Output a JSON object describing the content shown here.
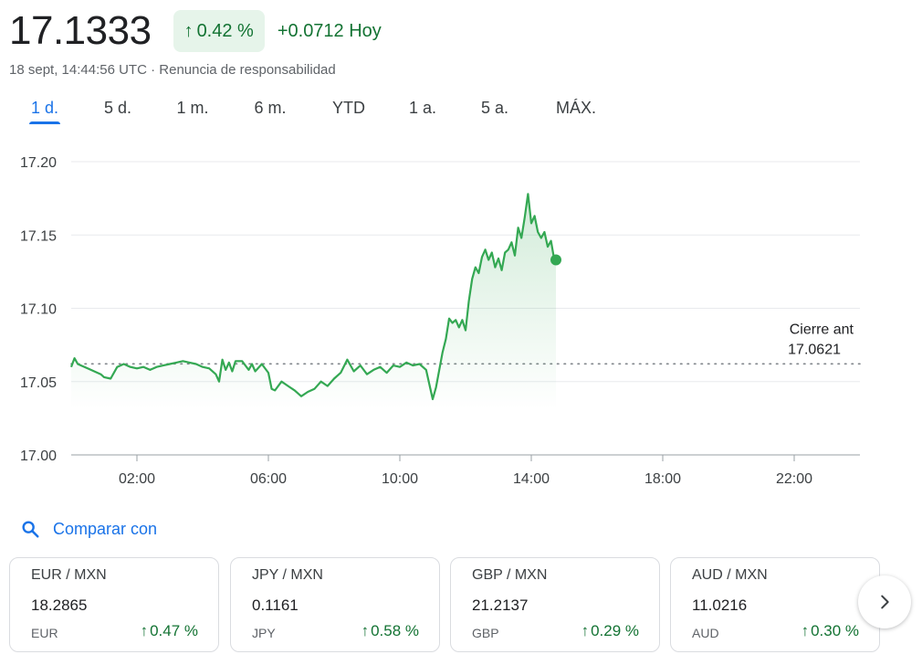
{
  "header": {
    "price": "17.1333",
    "pct_change": "0.42 %",
    "abs_change": "+0.0712 Hoy",
    "timestamp": "18 sept, 14:44:56 UTC · ",
    "disclaimer": "Renuncia de responsabilidad",
    "arrow_icon": "arrow-up-icon",
    "accent_color": "#137333",
    "accent_bg": "#e6f4ea"
  },
  "tabs": [
    {
      "label": "1 d.",
      "active": true
    },
    {
      "label": "5 d.",
      "active": false
    },
    {
      "label": "1 m.",
      "active": false
    },
    {
      "label": "6 m.",
      "active": false
    },
    {
      "label": "YTD",
      "active": false
    },
    {
      "label": "1 a.",
      "active": false
    },
    {
      "label": "5 a.",
      "active": false
    },
    {
      "label": "MÁX.",
      "active": false
    }
  ],
  "chart_data": {
    "type": "line",
    "x_unit": "hours",
    "y_ticks": [
      "17.20",
      "17.15",
      "17.10",
      "17.05",
      "17.00"
    ],
    "ylim": [
      17.0,
      17.2
    ],
    "xlim": [
      0,
      24
    ],
    "x_tick_labels": [
      "02:00",
      "06:00",
      "10:00",
      "14:00",
      "18:00",
      "22:00"
    ],
    "x_tick_values": [
      2,
      6,
      10,
      14,
      18,
      22
    ],
    "prev_close_label": "Cierre ant",
    "prev_close_value": "17.0621",
    "prev_close": 17.0621,
    "line_color": "#34a853",
    "grid": true,
    "series": [
      {
        "x": [
          0.0,
          0.1,
          0.2,
          0.3,
          0.5,
          0.7,
          0.9,
          1.0,
          1.2,
          1.4,
          1.6,
          1.8,
          2.0,
          2.2,
          2.4,
          2.6,
          2.8,
          3.0,
          3.2,
          3.4,
          3.6,
          3.8,
          4.0,
          4.2,
          4.4,
          4.5,
          4.6,
          4.7,
          4.8,
          4.9,
          5.0,
          5.2,
          5.4,
          5.5,
          5.6,
          5.8,
          6.0,
          6.1,
          6.2,
          6.4,
          6.6,
          6.8,
          7.0,
          7.2,
          7.4,
          7.6,
          7.8,
          8.0,
          8.2,
          8.4,
          8.6,
          8.8,
          9.0,
          9.2,
          9.4,
          9.6,
          9.8,
          10.0,
          10.2,
          10.4,
          10.6,
          10.8,
          10.9,
          11.0,
          11.1,
          11.2,
          11.3,
          11.4,
          11.5,
          11.6,
          11.7,
          11.8,
          11.9,
          12.0,
          12.1,
          12.2,
          12.3,
          12.4,
          12.5,
          12.6,
          12.7,
          12.8,
          12.9,
          13.0,
          13.1,
          13.2,
          13.3,
          13.4,
          13.5,
          13.6,
          13.7,
          13.8,
          13.9,
          14.0,
          14.1,
          14.2,
          14.3,
          14.4,
          14.5,
          14.6,
          14.7,
          14.75
        ],
        "y": [
          17.06,
          17.066,
          17.062,
          17.061,
          17.059,
          17.057,
          17.055,
          17.053,
          17.052,
          17.06,
          17.062,
          17.06,
          17.059,
          17.06,
          17.058,
          17.06,
          17.061,
          17.062,
          17.063,
          17.064,
          17.063,
          17.062,
          17.06,
          17.059,
          17.055,
          17.05,
          17.065,
          17.058,
          17.063,
          17.057,
          17.064,
          17.064,
          17.058,
          17.062,
          17.057,
          17.062,
          17.056,
          17.045,
          17.044,
          17.05,
          17.047,
          17.044,
          17.04,
          17.043,
          17.045,
          17.05,
          17.047,
          17.052,
          17.056,
          17.065,
          17.057,
          17.061,
          17.055,
          17.058,
          17.06,
          17.056,
          17.061,
          17.06,
          17.063,
          17.061,
          17.062,
          17.058,
          17.048,
          17.038,
          17.046,
          17.058,
          17.07,
          17.079,
          17.093,
          17.09,
          17.092,
          17.087,
          17.092,
          17.085,
          17.105,
          17.12,
          17.128,
          17.124,
          17.135,
          17.14,
          17.133,
          17.138,
          17.128,
          17.134,
          17.126,
          17.138,
          17.14,
          17.145,
          17.136,
          17.155,
          17.148,
          17.162,
          17.178,
          17.158,
          17.163,
          17.152,
          17.148,
          17.152,
          17.142,
          17.146,
          17.133,
          17.133
        ]
      }
    ]
  },
  "compare": {
    "label": "Comparar con",
    "icon": "search-icon"
  },
  "cards": [
    {
      "pair": "EUR / MXN",
      "value": "18.2865",
      "code": "EUR",
      "change": "0.47 %"
    },
    {
      "pair": "JPY / MXN",
      "value": "0.1161",
      "code": "JPY",
      "change": "0.58 %"
    },
    {
      "pair": "GBP / MXN",
      "value": "21.2137",
      "code": "GBP",
      "change": "0.29 %"
    },
    {
      "pair": "AUD / MXN",
      "value": "11.0216",
      "code": "AUD",
      "change": "0.30 %"
    }
  ],
  "next_button_icon": "chevron-right-icon"
}
